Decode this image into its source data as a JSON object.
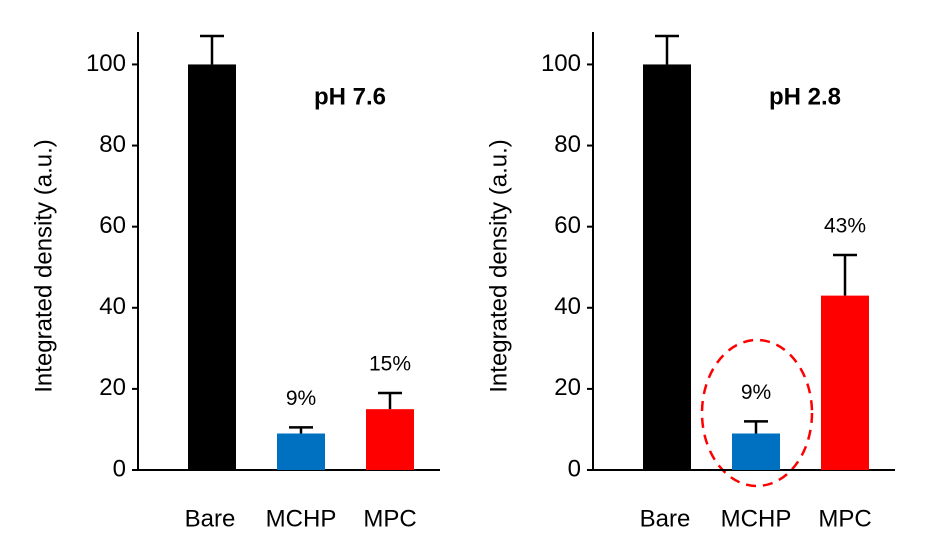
{
  "chart_data": [
    {
      "type": "bar",
      "title": "pH 7.6",
      "ylabel": "Integrated density (a.u.)",
      "categories": [
        "Bare",
        "MCHP",
        "MPC"
      ],
      "values": [
        100,
        9,
        15
      ],
      "errors": [
        7,
        1.5,
        4
      ],
      "value_labels": [
        null,
        "9%",
        "15%"
      ],
      "colors": [
        "#000000",
        "#0070c0",
        "#ff0000"
      ],
      "ylim": [
        0,
        108
      ],
      "yticks": [
        0,
        20,
        40,
        60,
        80,
        100
      ]
    },
    {
      "type": "bar",
      "title": "pH 2.8",
      "ylabel": "Integrated density (a.u.)",
      "categories": [
        "Bare",
        "MCHP",
        "MPC"
      ],
      "values": [
        100,
        9,
        43
      ],
      "errors": [
        7,
        3,
        10
      ],
      "value_labels": [
        null,
        "9%",
        "43%"
      ],
      "colors": [
        "#000000",
        "#0070c0",
        "#ff0000"
      ],
      "ylim": [
        0,
        108
      ],
      "yticks": [
        0,
        20,
        40,
        60,
        80,
        100
      ]
    }
  ]
}
